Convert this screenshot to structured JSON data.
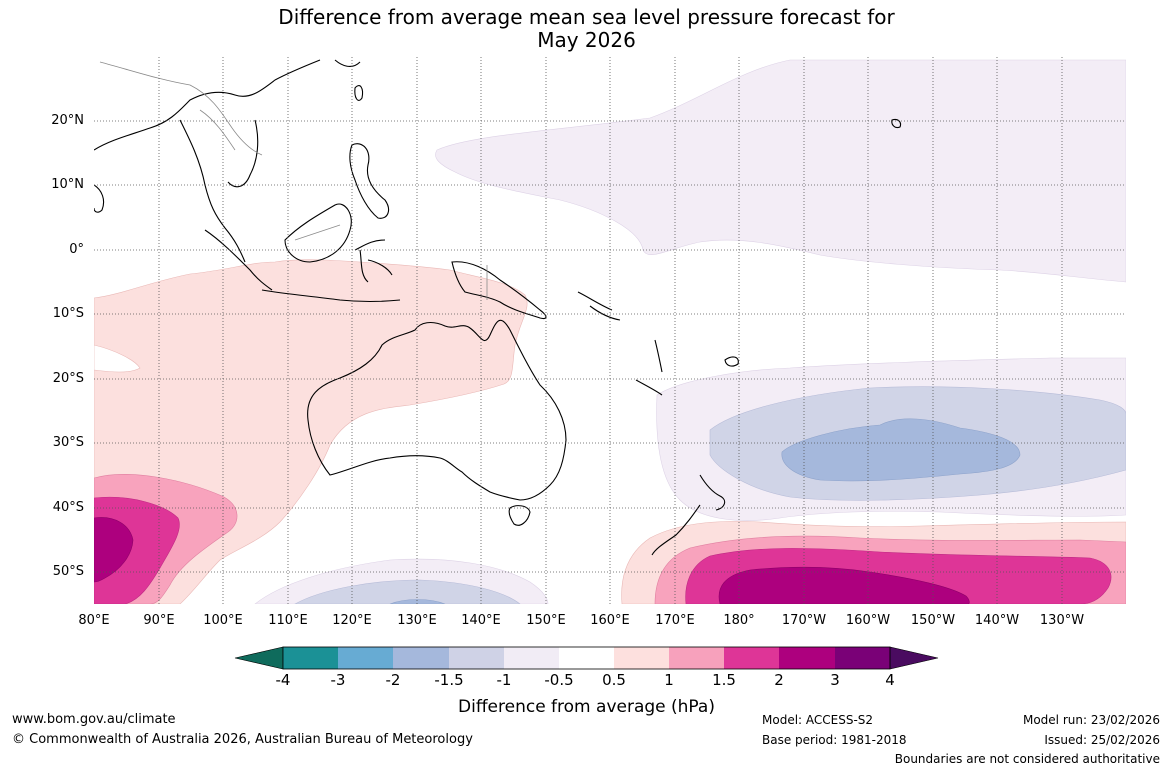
{
  "title": {
    "line1": "Difference from average mean sea level pressure forecast for",
    "line2": "May 2026"
  },
  "map": {
    "lat_labels": [
      "20°N",
      "10°N",
      "0°",
      "10°S",
      "20°S",
      "30°S",
      "40°S",
      "50°S"
    ],
    "lon_labels": [
      "80°E",
      "90°E",
      "100°E",
      "110°E",
      "120°E",
      "130°E",
      "140°E",
      "150°E",
      "160°E",
      "170°E",
      "180°",
      "170°W",
      "160°W",
      "150°W",
      "140°W",
      "130°W"
    ]
  },
  "colorbar": {
    "ticks": [
      "-4",
      "-3",
      "-2",
      "-1.5",
      "-1",
      "-0.5",
      "0.5",
      "1",
      "1.5",
      "2",
      "3",
      "4"
    ],
    "colors": [
      "#0f6b5c",
      "#1b9196",
      "#67abd3",
      "#a5b8dc",
      "#cfd2e6",
      "#f1ecf5",
      "#ffffff",
      "#fde0de",
      "#f7a1bc",
      "#de3597",
      "#ad007e",
      "#7a0177",
      "#4a0b60"
    ],
    "label": "Difference from average (hPa)"
  },
  "footer": {
    "website": "www.bom.gov.au/climate",
    "copyright": "© Commonwealth of Australia 2026, Australian Bureau of Meteorology",
    "model": "Model: ACCESS-S2",
    "base_period": "Base period: 1981-2018",
    "model_run": "Model run: 23/02/2026",
    "issued": "Issued: 25/02/2026",
    "disclaimer": "Boundaries are not considered authoritative"
  }
}
